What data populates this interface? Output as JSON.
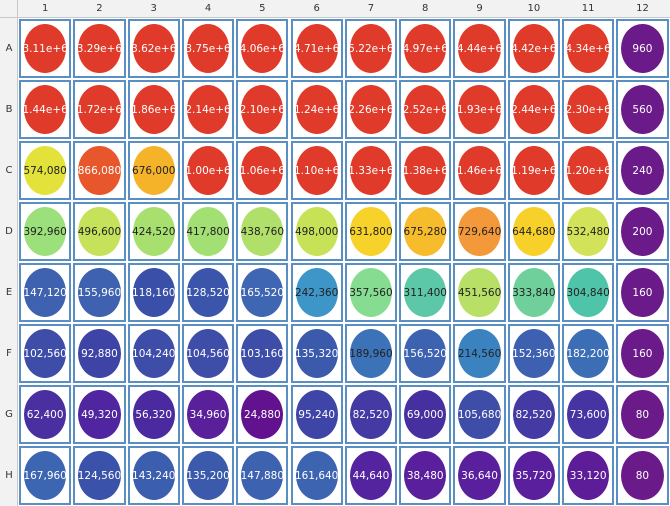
{
  "columns": [
    "1",
    "2",
    "3",
    "4",
    "5",
    "6",
    "7",
    "8",
    "9",
    "10",
    "11",
    "12"
  ],
  "rows": [
    {
      "label": "A",
      "cells": [
        {
          "value": "3.11e+6",
          "color": "#e03a2a",
          "text_color": "#ffffff"
        },
        {
          "value": "3.29e+6",
          "color": "#e03a2a",
          "text_color": "#ffffff"
        },
        {
          "value": "3.62e+6",
          "color": "#e03a2a",
          "text_color": "#ffffff"
        },
        {
          "value": "3.75e+6",
          "color": "#e03a2a",
          "text_color": "#ffffff"
        },
        {
          "value": "4.06e+6",
          "color": "#e03a2a",
          "text_color": "#ffffff"
        },
        {
          "value": "4.71e+6",
          "color": "#e03a2a",
          "text_color": "#ffffff"
        },
        {
          "value": "5.22e+6",
          "color": "#e03a2a",
          "text_color": "#ffffff"
        },
        {
          "value": "4.97e+6",
          "color": "#e03a2a",
          "text_color": "#ffffff"
        },
        {
          "value": "4.44e+6",
          "color": "#e03a2a",
          "text_color": "#ffffff"
        },
        {
          "value": "4.42e+6",
          "color": "#e03a2a",
          "text_color": "#ffffff"
        },
        {
          "value": "4.34e+6",
          "color": "#e03a2a",
          "text_color": "#ffffff"
        },
        {
          "value": "960",
          "color": "#6b1a8a",
          "text_color": "#ffffff"
        }
      ]
    },
    {
      "label": "B",
      "cells": [
        {
          "value": "1.44e+6",
          "color": "#e03a2a",
          "text_color": "#ffffff"
        },
        {
          "value": "1.72e+6",
          "color": "#e03a2a",
          "text_color": "#ffffff"
        },
        {
          "value": "1.86e+6",
          "color": "#e03a2a",
          "text_color": "#ffffff"
        },
        {
          "value": "2.14e+6",
          "color": "#e03a2a",
          "text_color": "#ffffff"
        },
        {
          "value": "2.10e+6",
          "color": "#e03a2a",
          "text_color": "#ffffff"
        },
        {
          "value": "1.24e+6",
          "color": "#e03a2a",
          "text_color": "#ffffff"
        },
        {
          "value": "2.26e+6",
          "color": "#e03a2a",
          "text_color": "#ffffff"
        },
        {
          "value": "2.52e+6",
          "color": "#e03a2a",
          "text_color": "#ffffff"
        },
        {
          "value": "1.93e+6",
          "color": "#e03a2a",
          "text_color": "#ffffff"
        },
        {
          "value": "2.44e+6",
          "color": "#e03a2a",
          "text_color": "#ffffff"
        },
        {
          "value": "2.30e+6",
          "color": "#e03a2a",
          "text_color": "#ffffff"
        },
        {
          "value": "560",
          "color": "#6b1a8a",
          "text_color": "#ffffff"
        }
      ]
    },
    {
      "label": "C",
      "cells": [
        {
          "value": "574,080",
          "color": "#e3e23a",
          "text_color": "#222222"
        },
        {
          "value": "866,080",
          "color": "#e8572c",
          "text_color": "#ffffff"
        },
        {
          "value": "676,000",
          "color": "#f5b32a",
          "text_color": "#222222"
        },
        {
          "value": "1.00e+6",
          "color": "#e03a2a",
          "text_color": "#ffffff"
        },
        {
          "value": "1.06e+6",
          "color": "#e03a2a",
          "text_color": "#ffffff"
        },
        {
          "value": "1.10e+6",
          "color": "#e03a2a",
          "text_color": "#ffffff"
        },
        {
          "value": "1.33e+6",
          "color": "#e03a2a",
          "text_color": "#ffffff"
        },
        {
          "value": "1.38e+6",
          "color": "#e03a2a",
          "text_color": "#ffffff"
        },
        {
          "value": "1.46e+6",
          "color": "#e03a2a",
          "text_color": "#ffffff"
        },
        {
          "value": "1.19e+6",
          "color": "#e03a2a",
          "text_color": "#ffffff"
        },
        {
          "value": "1.20e+6",
          "color": "#e03a2a",
          "text_color": "#ffffff"
        },
        {
          "value": "240",
          "color": "#6b1a8a",
          "text_color": "#ffffff"
        }
      ]
    },
    {
      "label": "D",
      "cells": [
        {
          "value": "392,960",
          "color": "#9be07a",
          "text_color": "#222222"
        },
        {
          "value": "496,600",
          "color": "#c6e25a",
          "text_color": "#222222"
        },
        {
          "value": "424,520",
          "color": "#a8e070",
          "text_color": "#222222"
        },
        {
          "value": "417,800",
          "color": "#a3e074",
          "text_color": "#222222"
        },
        {
          "value": "438,760",
          "color": "#b0e06a",
          "text_color": "#222222"
        },
        {
          "value": "498,000",
          "color": "#c8e258",
          "text_color": "#222222"
        },
        {
          "value": "631,800",
          "color": "#f7d22a",
          "text_color": "#222222"
        },
        {
          "value": "675,280",
          "color": "#f6bc2c",
          "text_color": "#222222"
        },
        {
          "value": "729,640",
          "color": "#f3993a",
          "text_color": "#222222"
        },
        {
          "value": "644,680",
          "color": "#f7d02a",
          "text_color": "#222222"
        },
        {
          "value": "532,480",
          "color": "#d2e35a",
          "text_color": "#222222"
        },
        {
          "value": "200",
          "color": "#6b1a8a",
          "text_color": "#ffffff"
        }
      ]
    },
    {
      "label": "E",
      "cells": [
        {
          "value": "147,120",
          "color": "#3f62b0",
          "text_color": "#ffffff"
        },
        {
          "value": "155,960",
          "color": "#3f62b0",
          "text_color": "#ffffff"
        },
        {
          "value": "118,160",
          "color": "#3a4fa8",
          "text_color": "#ffffff"
        },
        {
          "value": "128,520",
          "color": "#3a55aa",
          "text_color": "#ffffff"
        },
        {
          "value": "165,520",
          "color": "#3f66b2",
          "text_color": "#ffffff"
        },
        {
          "value": "242,360",
          "color": "#3d95c8",
          "text_color": "#222222"
        },
        {
          "value": "357,560",
          "color": "#86dd92",
          "text_color": "#222222"
        },
        {
          "value": "311,400",
          "color": "#5cc8a8",
          "text_color": "#222222"
        },
        {
          "value": "451,560",
          "color": "#b8e066",
          "text_color": "#222222"
        },
        {
          "value": "333,840",
          "color": "#6fd09c",
          "text_color": "#222222"
        },
        {
          "value": "304,840",
          "color": "#4fc4a8",
          "text_color": "#222222"
        },
        {
          "value": "160",
          "color": "#6b1a8a",
          "text_color": "#ffffff"
        }
      ]
    },
    {
      "label": "F",
      "cells": [
        {
          "value": "102,560",
          "color": "#3d4da8",
          "text_color": "#ffffff"
        },
        {
          "value": "92,880",
          "color": "#3e44a5",
          "text_color": "#ffffff"
        },
        {
          "value": "104,240",
          "color": "#3d4da8",
          "text_color": "#ffffff"
        },
        {
          "value": "104,560",
          "color": "#3d4da8",
          "text_color": "#ffffff"
        },
        {
          "value": "103,160",
          "color": "#3d4da8",
          "text_color": "#ffffff"
        },
        {
          "value": "135,320",
          "color": "#3c5aac",
          "text_color": "#ffffff"
        },
        {
          "value": "189,960",
          "color": "#3c72b8",
          "text_color": "#222222"
        },
        {
          "value": "156,520",
          "color": "#3d62b0",
          "text_color": "#ffffff"
        },
        {
          "value": "214,560",
          "color": "#3b82c0",
          "text_color": "#222222"
        },
        {
          "value": "152,360",
          "color": "#3d60b0",
          "text_color": "#ffffff"
        },
        {
          "value": "182,200",
          "color": "#3c6eb6",
          "text_color": "#ffffff"
        },
        {
          "value": "160",
          "color": "#6b1a8a",
          "text_color": "#ffffff"
        }
      ]
    },
    {
      "label": "G",
      "cells": [
        {
          "value": "62,400",
          "color": "#4a2fa0",
          "text_color": "#ffffff"
        },
        {
          "value": "49,320",
          "color": "#5026a0",
          "text_color": "#ffffff"
        },
        {
          "value": "56,320",
          "color": "#4b2a9f",
          "text_color": "#ffffff"
        },
        {
          "value": "34,960",
          "color": "#5a1f9a",
          "text_color": "#ffffff"
        },
        {
          "value": "24,880",
          "color": "#62128e",
          "text_color": "#ffffff"
        },
        {
          "value": "95,240",
          "color": "#3f45a6",
          "text_color": "#ffffff"
        },
        {
          "value": "82,520",
          "color": "#443aa3",
          "text_color": "#ffffff"
        },
        {
          "value": "69,000",
          "color": "#4630a0",
          "text_color": "#ffffff"
        },
        {
          "value": "105,680",
          "color": "#3d4da8",
          "text_color": "#ffffff"
        },
        {
          "value": "82,520",
          "color": "#443aa3",
          "text_color": "#ffffff"
        },
        {
          "value": "73,600",
          "color": "#4634a2",
          "text_color": "#ffffff"
        },
        {
          "value": "80",
          "color": "#6b1a8a",
          "text_color": "#ffffff"
        }
      ]
    },
    {
      "label": "H",
      "cells": [
        {
          "value": "167,960",
          "color": "#3d66b2",
          "text_color": "#ffffff"
        },
        {
          "value": "124,560",
          "color": "#3b52aa",
          "text_color": "#ffffff"
        },
        {
          "value": "143,240",
          "color": "#3c5eae",
          "text_color": "#ffffff"
        },
        {
          "value": "135,200",
          "color": "#3c5aac",
          "text_color": "#ffffff"
        },
        {
          "value": "147,880",
          "color": "#3d62b0",
          "text_color": "#ffffff"
        },
        {
          "value": "161,640",
          "color": "#3d64b1",
          "text_color": "#ffffff"
        },
        {
          "value": "44,640",
          "color": "#5424a0",
          "text_color": "#ffffff"
        },
        {
          "value": "38,480",
          "color": "#5a1f9c",
          "text_color": "#ffffff"
        },
        {
          "value": "36,640",
          "color": "#5a1f9c",
          "text_color": "#ffffff"
        },
        {
          "value": "35,720",
          "color": "#5a1f9c",
          "text_color": "#ffffff"
        },
        {
          "value": "33,120",
          "color": "#5d1c98",
          "text_color": "#ffffff"
        },
        {
          "value": "80",
          "color": "#6b1a8a",
          "text_color": "#ffffff"
        }
      ]
    }
  ]
}
